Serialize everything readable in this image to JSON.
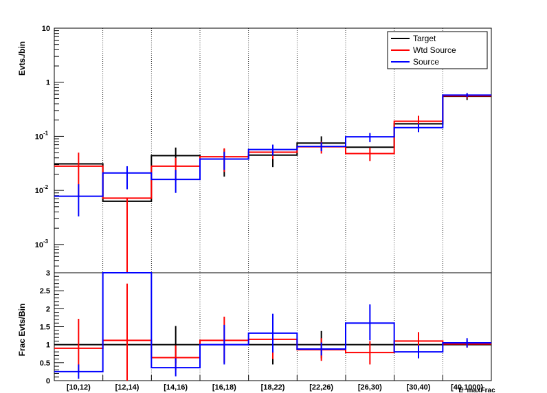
{
  "chart_data": [
    {
      "type": "line",
      "style": "step-histogram",
      "yscale": "log",
      "ylabel": "Evts./bin",
      "xlabel": "",
      "categories": [
        "[10,12)",
        "[12,14)",
        "[14,16)",
        "[16,18)",
        "[18,22)",
        "[22,26)",
        "[26,30)",
        "[30,40)",
        "[40,1000)"
      ],
      "ylim": [
        0.0003,
        10
      ],
      "ytick_labels": [
        {
          "value": 10,
          "base": "10",
          "exp": ""
        },
        {
          "value": 1,
          "base": "1",
          "exp": ""
        },
        {
          "value": 0.1,
          "base": "10",
          "exp": "-1"
        },
        {
          "value": 0.01,
          "base": "10",
          "exp": "-2"
        },
        {
          "value": 0.001,
          "base": "10",
          "exp": "-3"
        }
      ],
      "grid": "vertical dotted at bin edges",
      "legend_position": "top-right",
      "series": [
        {
          "name": "Target",
          "color": "#000000",
          "values": [
            0.031,
            0.0063,
            0.044,
            0.038,
            0.045,
            0.075,
            0.063,
            0.17,
            0.55
          ],
          "err_lo": [
            0.031,
            0.0063,
            0.028,
            0.018,
            0.027,
            0.055,
            0.063,
            0.12,
            0.47
          ],
          "err_hi": [
            0.031,
            0.0063,
            0.062,
            0.058,
            0.07,
            0.1,
            0.063,
            0.22,
            0.62
          ]
        },
        {
          "name": "Wtd Source",
          "color": "#ff0000",
          "values": [
            0.028,
            0.0072,
            0.028,
            0.042,
            0.051,
            0.064,
            0.048,
            0.19,
            0.56
          ],
          "err_lo": [
            0.0075,
            0.0003,
            0.015,
            0.022,
            0.038,
            0.048,
            0.035,
            0.145,
            0.5
          ],
          "err_hi": [
            0.05,
            0.0072,
            0.04,
            0.06,
            0.064,
            0.08,
            0.062,
            0.24,
            0.62
          ]
        },
        {
          "name": "Source",
          "color": "#0000ff",
          "values": [
            0.0078,
            0.021,
            0.016,
            0.038,
            0.057,
            0.065,
            0.098,
            0.145,
            0.58
          ],
          "err_lo": [
            0.0033,
            0.0105,
            0.009,
            0.024,
            0.044,
            0.053,
            0.078,
            0.12,
            0.53
          ],
          "err_hi": [
            0.013,
            0.028,
            0.024,
            0.052,
            0.07,
            0.077,
            0.115,
            0.17,
            0.63
          ]
        }
      ]
    },
    {
      "type": "line",
      "style": "step-histogram",
      "yscale": "linear",
      "ylabel": "Frac Evts/Bin",
      "xlabel": "E_maxFrac",
      "categories": [
        "[10,12)",
        "[12,14)",
        "[14,16)",
        "[16,18)",
        "[18,22)",
        "[22,26)",
        "[26,30)",
        "[30,40)",
        "[40,1000)"
      ],
      "ylim": [
        0,
        3
      ],
      "ytick_labels": [
        "0",
        "0.5",
        "1",
        "1.5",
        "2",
        "2.5",
        "3"
      ],
      "grid": "vertical dotted at bin edges",
      "series": [
        {
          "name": "Target",
          "color": "#000000",
          "values": [
            1,
            1,
            1,
            1,
            1,
            1,
            1,
            1,
            1
          ],
          "err_lo": [
            1,
            1,
            0.48,
            1,
            0.45,
            0.62,
            1,
            1,
            1
          ],
          "err_hi": [
            1,
            1,
            1.52,
            1,
            1.55,
            1.38,
            1,
            1,
            1
          ]
        },
        {
          "name": "Wtd Source",
          "color": "#ff0000",
          "values": [
            0.9,
            1.12,
            0.64,
            1.12,
            1.15,
            0.86,
            0.78,
            1.1,
            1.02
          ],
          "err_lo": [
            0.25,
            0,
            0.3,
            0.5,
            0.6,
            0.55,
            0.45,
            0.85,
            0.92
          ],
          "err_hi": [
            1.72,
            2.7,
            0.98,
            1.78,
            1.72,
            1.18,
            1.1,
            1.35,
            1.12
          ]
        },
        {
          "name": "Source",
          "color": "#0000ff",
          "values": [
            0.25,
            3.0,
            0.36,
            1.0,
            1.32,
            0.88,
            1.6,
            0.8,
            1.05
          ],
          "err_lo": [
            0.05,
            3.0,
            0.12,
            0.45,
            0.78,
            0.7,
            1.12,
            0.62,
            0.92
          ],
          "err_hi": [
            0.45,
            3.0,
            0.62,
            1.55,
            1.86,
            1.06,
            2.12,
            0.98,
            1.18
          ]
        }
      ]
    }
  ]
}
